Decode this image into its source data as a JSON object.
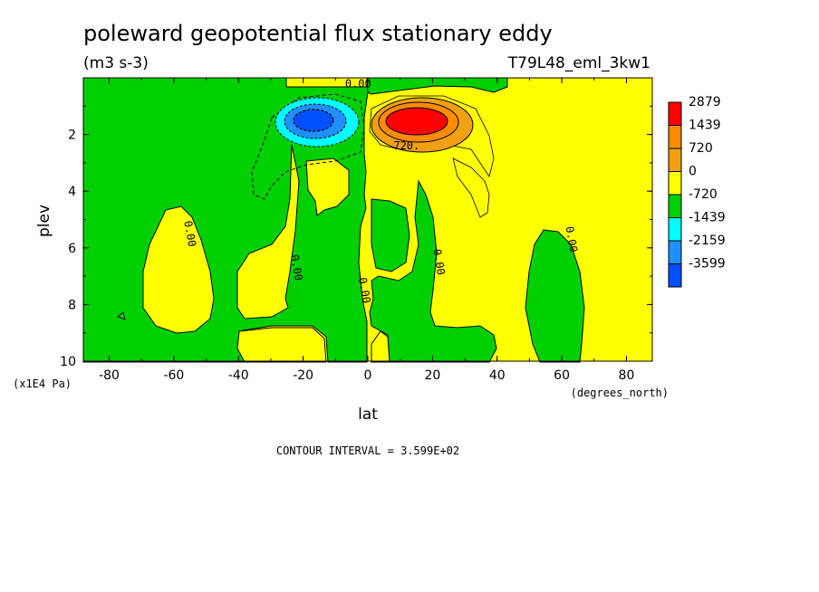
{
  "chart_data": {
    "type": "heatmap",
    "title": "poleward geopotential flux stationary eddy",
    "units": "(m3 s-3)",
    "experiment": "T79L48_eml_3kw1",
    "xlabel": "lat",
    "xunits": "(degrees_north)",
    "ylabel": "plev",
    "yunits": "(x1E4 Pa)",
    "xlim": [
      -88,
      88
    ],
    "ylim": [
      10,
      0
    ],
    "xticks": [
      "-80",
      "-60",
      "-40",
      "-20",
      "0",
      "20",
      "40",
      "60",
      "80"
    ],
    "xtick_values": [
      -80,
      -60,
      -40,
      -20,
      0,
      20,
      40,
      60,
      80
    ],
    "yticks": [
      "2",
      "4",
      "6",
      "8",
      "10"
    ],
    "ytick_values": [
      2,
      4,
      6,
      8,
      10
    ],
    "contour_interval": "CONTOUR INTERVAL = 3.599E+02",
    "legend": {
      "placement": "right",
      "labels": [
        "2879",
        "1439",
        "720",
        "0",
        "-720",
        "-1439",
        "-2159",
        "-3599"
      ],
      "colors": [
        "#ff0000",
        "#ff8c00",
        "#f0a010",
        "#ffff00",
        "#00d000",
        "#00ffff",
        "#1e90ff",
        "#0050ff"
      ]
    },
    "contour_labels": [
      {
        "text": "0.00",
        "lat": -3,
        "plev": 0.2
      },
      {
        "text": "720.",
        "lat": 12,
        "plev": 2.4
      },
      {
        "text": "0.00",
        "lat": -55,
        "plev": 5.5
      },
      {
        "text": "0.00",
        "lat": -22,
        "plev": 6.7
      },
      {
        "text": "0.00",
        "lat": -1,
        "plev": 7.5
      },
      {
        "text": "0.00",
        "lat": 22,
        "plev": 6.5
      },
      {
        "text": "0.00",
        "lat": 63,
        "plev": 5.7
      }
    ],
    "extrema": [
      {
        "value": -3599,
        "lat": -16,
        "plev": 1.6
      },
      {
        "value": 2879,
        "lat": 15,
        "plev": 1.6
      }
    ]
  }
}
